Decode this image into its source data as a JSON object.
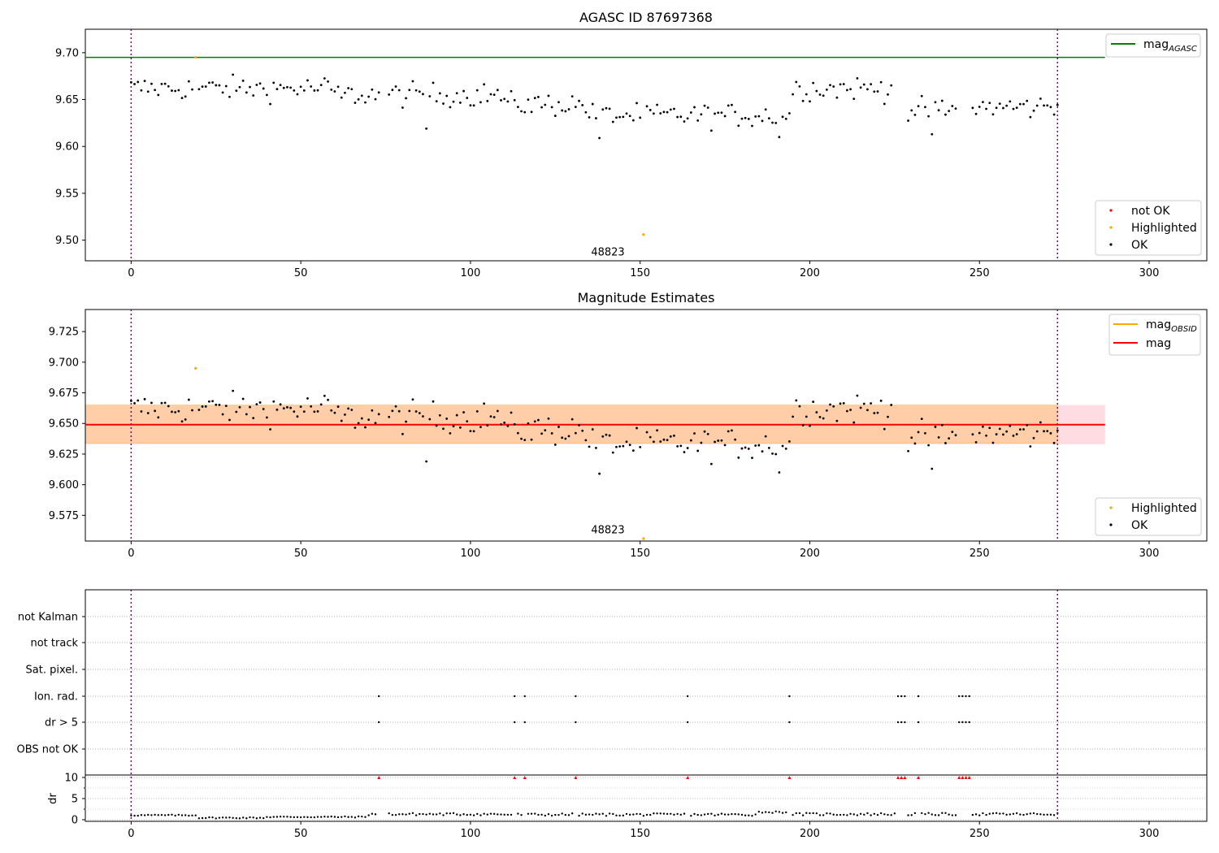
{
  "chart_data": [
    {
      "type": "scatter",
      "title": "AGASC ID 87697368",
      "xlim": [
        -13.5,
        317
      ],
      "ylim": [
        9.478,
        9.725
      ],
      "xticks": [
        0,
        50,
        100,
        150,
        200,
        250,
        300
      ],
      "yticks": [
        9.5,
        9.55,
        9.6,
        9.65,
        9.7
      ],
      "yticklabels": [
        "9.50",
        "9.55",
        "9.60",
        "9.65",
        "9.70"
      ],
      "vlines": [
        0,
        273
      ],
      "hline": {
        "y": 9.695,
        "x_range": [
          -13.5,
          287
        ],
        "color": "#008000",
        "label": "mag",
        "label_sub": "AGASC"
      },
      "annotation": {
        "text": "48823",
        "x": 140.5,
        "y": 9.487
      },
      "highlighted_points": [
        [
          19,
          9.695
        ],
        [
          151,
          9.506
        ]
      ],
      "legend": [
        {
          "label": "not OK",
          "color": "#ff0000"
        },
        {
          "label": "Highlighted",
          "color": "#ffa500"
        },
        {
          "label": "OK",
          "color": "#000000"
        }
      ]
    },
    {
      "type": "scatter",
      "title": "Magnitude Estimates",
      "xlim": [
        -13.5,
        317
      ],
      "ylim": [
        9.554,
        9.743
      ],
      "xticks": [
        0,
        50,
        100,
        150,
        200,
        250,
        300
      ],
      "yticks": [
        9.575,
        9.6,
        9.625,
        9.65,
        9.675,
        9.7,
        9.725
      ],
      "yticklabels": [
        "9.575",
        "9.600",
        "9.625",
        "9.650",
        "9.675",
        "9.700",
        "9.725"
      ],
      "vlines": [
        0,
        273
      ],
      "mean_line": {
        "y": 9.649,
        "x_range": [
          -13.5,
          287
        ],
        "color": "#ff0000",
        "label": "mag"
      },
      "obsid_band": {
        "y_range": [
          9.634,
          9.665
        ],
        "x_range": [
          -13.5,
          273
        ],
        "color": "#ffa500",
        "label": "mag",
        "label_sub": "OBSID"
      },
      "mag_band": {
        "y_range": [
          9.633,
          9.665
        ],
        "x_range": [
          -13.5,
          287
        ],
        "color": "#ffc0cb"
      },
      "annotation": {
        "text": "48823",
        "x": 140.5,
        "y": 9.563
      },
      "highlighted_points": [
        [
          19,
          9.695
        ],
        [
          151,
          9.556
        ]
      ],
      "legend_lines": [
        {
          "label": "mag",
          "label_sub": "OBSID",
          "color": "#ffa500"
        },
        {
          "label": "mag",
          "label_sub": "",
          "color": "#ff0000"
        }
      ],
      "legend": [
        {
          "label": "Highlighted",
          "color": "#ffa500"
        },
        {
          "label": "OK",
          "color": "#000000"
        }
      ]
    },
    {
      "type": "scatter",
      "xlim": [
        -13.5,
        317
      ],
      "xticks": [
        0,
        50,
        100,
        150,
        200,
        250,
        300
      ],
      "vlines": [
        0,
        273
      ],
      "flag_rows": [
        "not Kalman",
        "not track",
        "Sat. pixel.",
        "Ion. rad.",
        "dr > 5",
        "OBS not OK"
      ],
      "flag_points": {
        "Ion. rad.": [
          73,
          113,
          116,
          131,
          164,
          194,
          226,
          227,
          228,
          232,
          244,
          245,
          246,
          247
        ],
        "dr > 5": [
          73,
          113,
          116,
          131,
          164,
          194,
          226,
          227,
          228,
          232,
          244,
          245,
          246,
          247
        ]
      },
      "dr": {
        "ylabel": "dr",
        "ylim": [
          -0.3,
          10.3
        ],
        "yticks": [
          0,
          5,
          10
        ],
        "yticklabels": [
          "0",
          "5",
          "10"
        ],
        "clipped_at": 10,
        "clipped_x": [
          73,
          113,
          116,
          131,
          164,
          194,
          226,
          227,
          228,
          232,
          244,
          245,
          246,
          247
        ]
      }
    }
  ]
}
